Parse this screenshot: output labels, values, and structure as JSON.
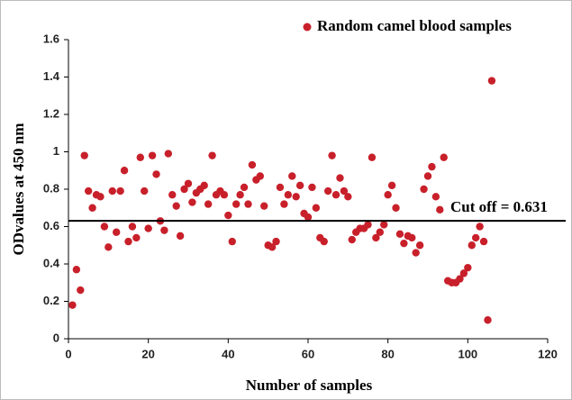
{
  "chart_data": {
    "type": "scatter",
    "series": [
      {
        "name": "Random camel blood samples",
        "color": "#c8202a",
        "x": [
          1,
          2,
          3,
          4,
          5,
          6,
          7,
          8,
          9,
          10,
          11,
          12,
          13,
          14,
          15,
          16,
          17,
          18,
          19,
          20,
          21,
          22,
          23,
          24,
          25,
          26,
          27,
          28,
          29,
          30,
          31,
          32,
          33,
          34,
          35,
          36,
          37,
          38,
          39,
          40,
          41,
          42,
          43,
          44,
          45,
          46,
          47,
          48,
          49,
          50,
          51,
          52,
          53,
          54,
          55,
          56,
          57,
          58,
          59,
          60,
          61,
          62,
          63,
          64,
          65,
          66,
          67,
          68,
          69,
          70,
          71,
          72,
          73,
          74,
          75,
          76,
          77,
          78,
          79,
          80,
          81,
          82,
          83,
          84,
          85,
          86,
          87,
          88,
          89,
          90,
          91,
          92,
          93,
          94,
          95,
          96,
          97,
          98,
          99,
          100,
          101,
          102,
          103,
          104,
          105,
          106
        ],
        "values": [
          0.18,
          0.37,
          0.26,
          0.98,
          0.79,
          0.7,
          0.77,
          0.76,
          0.6,
          0.49,
          0.79,
          0.57,
          0.79,
          0.9,
          0.52,
          0.6,
          0.54,
          0.97,
          0.79,
          0.59,
          0.98,
          0.88,
          0.63,
          0.58,
          0.99,
          0.77,
          0.71,
          0.55,
          0.8,
          0.83,
          0.73,
          0.78,
          0.8,
          0.82,
          0.72,
          0.98,
          0.77,
          0.79,
          0.77,
          0.66,
          0.52,
          0.72,
          0.77,
          0.81,
          0.72,
          0.93,
          0.85,
          0.87,
          0.71,
          0.5,
          0.49,
          0.52,
          0.81,
          0.72,
          0.77,
          0.87,
          0.76,
          0.82,
          0.67,
          0.65,
          0.81,
          0.7,
          0.54,
          0.52,
          0.79,
          0.98,
          0.77,
          0.86,
          0.79,
          0.76,
          0.53,
          0.57,
          0.59,
          0.59,
          0.61,
          0.97,
          0.54,
          0.57,
          0.61,
          0.77,
          0.82,
          0.7,
          0.56,
          0.51,
          0.55,
          0.54,
          0.46,
          0.5,
          0.8,
          0.87,
          0.92,
          0.76,
          0.69,
          0.97,
          0.31,
          0.3,
          0.3,
          0.32,
          0.35,
          0.38,
          0.5,
          0.54,
          0.6,
          0.52,
          0.1,
          1.38
        ]
      }
    ],
    "cutoff": 0.631,
    "annotation": "Cut off = 0.631",
    "xlabel": "Number of samples",
    "ylabel": "ODvalues at 450 nm",
    "xlim": [
      0,
      120
    ],
    "xticks": [
      0,
      20,
      40,
      60,
      80,
      100,
      120
    ],
    "ylim": [
      0,
      1.6
    ],
    "yticks": [
      0,
      0.2,
      0.4,
      0.6,
      0.8,
      1,
      1.2,
      1.4,
      1.6
    ],
    "legend": "top-right"
  }
}
